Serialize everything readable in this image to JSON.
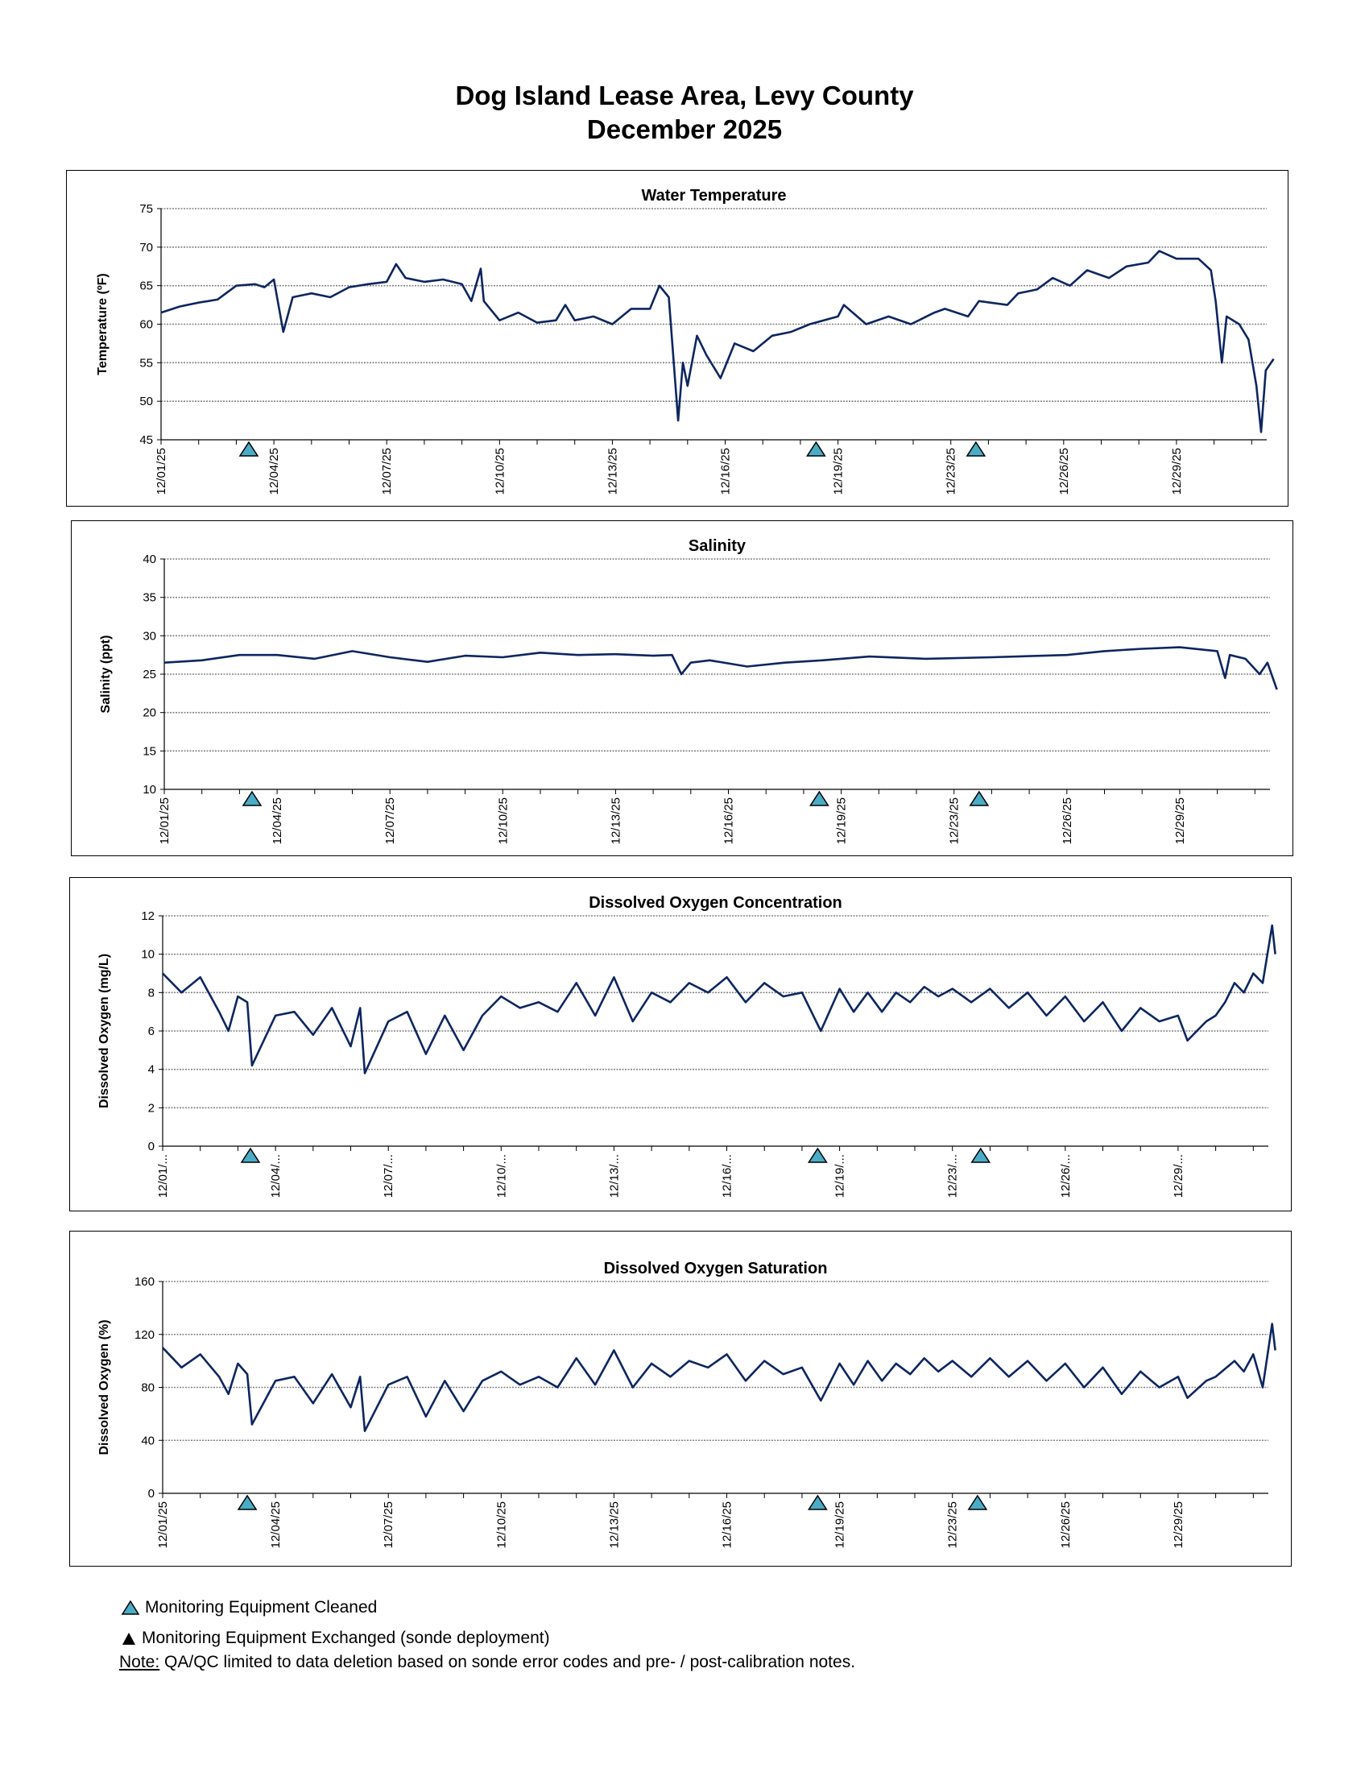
{
  "header": {
    "title_line1": "Dog Island Lease Area, Levy County",
    "title_line2": "December 2025"
  },
  "colors": {
    "line": "#0d2660",
    "marker_cleaned": "#4bacc6",
    "grid": "#808080"
  },
  "markers": {
    "cleaned_icon": "triangle-teal",
    "exchanged_icon": "triangle-black"
  },
  "legend": {
    "cleaned": "Monitoring Equipment Cleaned",
    "exchanged": "Monitoring Equipment Exchanged (sonde deployment)",
    "note_label": "Note:",
    "note_text": " QA/QC limited to data deletion based on sonde error codes and pre- / post-calibration notes."
  },
  "chart_data": [
    {
      "type": "line",
      "title": "Water Temperature",
      "ylabel": "Temperature (ºF)",
      "ylim": [
        45,
        75
      ],
      "ystep": 5,
      "grid": true,
      "tick_labels": [
        "12/01/25",
        "12/04/25",
        "12/07/25",
        "12/10/25",
        "12/13/25",
        "12/16/25",
        "12/19/25",
        "12/23/25",
        "12/26/25",
        "12/29/25"
      ],
      "cleaned_events": [
        "12/03 08:00",
        "12/18 10:00",
        "12/23 16:00"
      ],
      "x": [
        "12/01 00:00",
        "12/01 12:00",
        "12/02 00:00",
        "12/02 12:00",
        "12/03 00:00",
        "12/03 12:00",
        "12/03 18:00",
        "12/04 00:00",
        "12/04 06:00",
        "12/04 12:00",
        "12/05 00:00",
        "12/05 12:00",
        "12/06 00:00",
        "12/06 12:00",
        "12/07 00:00",
        "12/07 06:00",
        "12/07 12:00",
        "12/08 00:00",
        "12/08 12:00",
        "12/09 00:00",
        "12/09 06:00",
        "12/09 12:00",
        "12/09 14:00",
        "12/10 00:00",
        "12/10 12:00",
        "12/11 00:00",
        "12/11 12:00",
        "12/11 18:00",
        "12/12 00:00",
        "12/12 12:00",
        "12/13 00:00",
        "12/13 12:00",
        "12/14 00:00",
        "12/14 06:00",
        "12/14 12:00",
        "12/14 18:00",
        "12/14 21:00",
        "12/15 00:00",
        "12/15 06:00",
        "12/15 12:00",
        "12/15 21:00",
        "12/16 06:00",
        "12/16 18:00",
        "12/17 06:00",
        "12/17 18:00",
        "12/18 06:00",
        "12/19 00:00",
        "12/19 05:00",
        "12/20 00:00",
        "12/20 19:00",
        "12/21 14:00",
        "12/22 10:00",
        "12/22 19:00",
        "12/23 11:00",
        "12/23 18:00",
        "12/24 12:00",
        "12/24 19:00",
        "12/25 07:00",
        "12/25 17:00",
        "12/26 04:00",
        "12/26 15:00",
        "12/27 05:00",
        "12/27 16:00",
        "12/28 06:00",
        "12/28 13:00",
        "12/29 00:00",
        "12/29 14:00",
        "12/29 22:00",
        "12/30 01:00",
        "12/30 05:00",
        "12/30 08:00",
        "12/30 16:00",
        "12/30 22:00",
        "12/31 03:00",
        "12/31 06:00",
        "12/31 09:00",
        "12/31 14:00"
      ],
      "values": [
        61.5,
        62.3,
        62.8,
        63.2,
        65.0,
        65.2,
        64.8,
        65.8,
        59.0,
        63.5,
        64.0,
        63.5,
        64.8,
        65.2,
        65.5,
        67.8,
        66.0,
        65.5,
        65.8,
        65.2,
        63.0,
        67.2,
        63.0,
        60.5,
        61.5,
        60.2,
        60.5,
        62.5,
        60.5,
        61.0,
        60.0,
        62.0,
        62.0,
        65.0,
        63.5,
        47.5,
        55.0,
        52.0,
        58.5,
        56.0,
        53.0,
        57.5,
        56.5,
        58.5,
        59.0,
        60.0,
        61.0,
        62.5,
        60.0,
        61.0,
        60.0,
        61.5,
        62.0,
        61.0,
        63.0,
        62.5,
        64.0,
        64.5,
        66.0,
        65.0,
        67.0,
        66.0,
        67.5,
        68.0,
        69.5,
        68.5,
        68.5,
        67.0,
        63.0,
        55.0,
        61.0,
        60.0,
        58.0,
        52.0,
        46.0,
        54.0,
        55.5
      ]
    },
    {
      "type": "line",
      "title": "Salinity",
      "ylabel": "Salinity (ppt)",
      "ylim": [
        10,
        40
      ],
      "ystep": 5,
      "grid": true,
      "tick_labels": [
        "12/01/25",
        "12/04/25",
        "12/07/25",
        "12/10/25",
        "12/13/25",
        "12/16/25",
        "12/19/25",
        "12/23/25",
        "12/26/25",
        "12/29/25"
      ],
      "cleaned_events": [
        "12/03 08:00",
        "12/18 10:00",
        "12/23 16:00"
      ],
      "x": [
        "12/01 00:00",
        "12/02 00:00",
        "12/03 00:00",
        "12/04 00:00",
        "12/05 00:00",
        "12/06 00:00",
        "12/07 00:00",
        "12/08 00:00",
        "12/09 00:00",
        "12/10 00:00",
        "12/11 00:00",
        "12/12 00:00",
        "12/13 00:00",
        "12/14 00:00",
        "12/14 12:00",
        "12/14 18:00",
        "12/15 00:00",
        "12/15 12:00",
        "12/16 12:00",
        "12/17 12:00",
        "12/18 12:00",
        "12/20 00:00",
        "12/22 00:00",
        "12/24 00:00",
        "12/26 00:00",
        "12/27 00:00",
        "12/28 00:00",
        "12/29 00:00",
        "12/30 00:00",
        "12/30 05:00",
        "12/30 08:00",
        "12/30 18:00",
        "12/31 03:00",
        "12/31 08:00",
        "12/31 14:00"
      ],
      "values": [
        26.5,
        26.8,
        27.5,
        27.5,
        27.0,
        28.0,
        27.2,
        26.6,
        27.4,
        27.2,
        27.8,
        27.5,
        27.6,
        27.4,
        27.5,
        25.0,
        26.5,
        26.8,
        26.0,
        26.5,
        26.8,
        27.3,
        27.0,
        27.2,
        27.5,
        28.0,
        28.3,
        28.5,
        28.0,
        24.5,
        27.5,
        27.0,
        25.0,
        26.5,
        23.0
      ]
    },
    {
      "type": "line",
      "title": "Dissolved Oxygen Concentration",
      "ylabel": "Dissolved Oxygen (mg/L)",
      "ylim": [
        0,
        12
      ],
      "ystep": 2,
      "grid": true,
      "tick_labels": [
        "12/01/...",
        "12/04/...",
        "12/07/...",
        "12/10/...",
        "12/13/...",
        "12/16/...",
        "12/19/...",
        "12/23/...",
        "12/26/...",
        "12/29/..."
      ],
      "cleaned_events": [
        "12/03 08:00",
        "12/18 10:00",
        "12/23 18:00"
      ],
      "x": [
        "12/01 00:00",
        "12/01 12:00",
        "12/02 00:00",
        "12/02 12:00",
        "12/02 18:00",
        "12/03 00:00",
        "12/03 06:00",
        "12/03 09:00",
        "12/04 00:00",
        "12/04 12:00",
        "12/05 00:00",
        "12/05 12:00",
        "12/06 00:00",
        "12/06 06:00",
        "12/06 09:00",
        "12/07 00:00",
        "12/07 12:00",
        "12/08 00:00",
        "12/08 12:00",
        "12/09 00:00",
        "12/09 12:00",
        "12/10 00:00",
        "12/10 12:00",
        "12/11 00:00",
        "12/11 12:00",
        "12/12 00:00",
        "12/12 12:00",
        "12/13 00:00",
        "12/13 12:00",
        "12/14 00:00",
        "12/14 12:00",
        "12/15 00:00",
        "12/15 12:00",
        "12/16 00:00",
        "12/16 12:00",
        "12/17 00:00",
        "12/17 12:00",
        "12/18 00:00",
        "12/18 12:00",
        "12/19 00:00",
        "12/19 12:00",
        "12/20 00:00",
        "12/20 12:00",
        "12/21 00:00",
        "12/21 12:00",
        "12/22 00:00",
        "12/22 12:00",
        "12/23 00:00",
        "12/23 12:00",
        "12/24 00:00",
        "12/24 12:00",
        "12/25 00:00",
        "12/25 12:00",
        "12/26 00:00",
        "12/26 12:00",
        "12/27 00:00",
        "12/27 12:00",
        "12/28 00:00",
        "12/28 12:00",
        "12/29 00:00",
        "12/29 06:00",
        "12/29 18:00",
        "12/30 00:00",
        "12/30 06:00",
        "12/30 12:00",
        "12/30 18:00",
        "12/31 00:00",
        "12/31 06:00",
        "12/31 12:00",
        "12/31 14:00"
      ],
      "values": [
        9.0,
        8.0,
        8.8,
        7.0,
        6.0,
        7.8,
        7.5,
        4.2,
        6.8,
        7.0,
        5.8,
        7.2,
        5.2,
        7.2,
        3.8,
        6.5,
        7.0,
        4.8,
        6.8,
        5.0,
        6.8,
        7.8,
        7.2,
        7.5,
        7.0,
        8.5,
        6.8,
        8.8,
        6.5,
        8.0,
        7.5,
        8.5,
        8.0,
        8.8,
        7.5,
        8.5,
        7.8,
        8.0,
        6.0,
        8.2,
        7.0,
        8.0,
        7.0,
        8.0,
        7.5,
        8.3,
        7.8,
        8.2,
        7.5,
        8.2,
        7.2,
        8.0,
        6.8,
        7.8,
        6.5,
        7.5,
        6.0,
        7.2,
        6.5,
        6.8,
        5.5,
        6.5,
        6.8,
        7.5,
        8.5,
        8.0,
        9.0,
        8.5,
        11.5,
        10.0
      ]
    },
    {
      "type": "line",
      "title": "Dissolved Oxygen Saturation",
      "ylabel": "Dissolved Oxygen (%)",
      "ylim": [
        0,
        160
      ],
      "ystep": 40,
      "grid": true,
      "tick_labels": [
        "12/01/25",
        "12/04/25",
        "12/07/25",
        "12/10/25",
        "12/13/25",
        "12/16/25",
        "12/19/25",
        "12/23/25",
        "12/26/25",
        "12/29/25"
      ],
      "cleaned_events": [
        "12/03 06:00",
        "12/18 10:00",
        "12/23 16:00"
      ],
      "x": [
        "12/01 00:00",
        "12/01 12:00",
        "12/02 00:00",
        "12/02 12:00",
        "12/02 18:00",
        "12/03 00:00",
        "12/03 06:00",
        "12/03 09:00",
        "12/04 00:00",
        "12/04 12:00",
        "12/05 00:00",
        "12/05 12:00",
        "12/06 00:00",
        "12/06 06:00",
        "12/06 09:00",
        "12/07 00:00",
        "12/07 12:00",
        "12/08 00:00",
        "12/08 12:00",
        "12/09 00:00",
        "12/09 12:00",
        "12/10 00:00",
        "12/10 12:00",
        "12/11 00:00",
        "12/11 12:00",
        "12/12 00:00",
        "12/12 12:00",
        "12/13 00:00",
        "12/13 12:00",
        "12/14 00:00",
        "12/14 12:00",
        "12/15 00:00",
        "12/15 12:00",
        "12/16 00:00",
        "12/16 12:00",
        "12/17 00:00",
        "12/17 12:00",
        "12/18 00:00",
        "12/18 12:00",
        "12/19 00:00",
        "12/19 12:00",
        "12/20 00:00",
        "12/20 12:00",
        "12/21 00:00",
        "12/21 12:00",
        "12/22 00:00",
        "12/22 12:00",
        "12/23 00:00",
        "12/23 12:00",
        "12/24 00:00",
        "12/24 12:00",
        "12/25 00:00",
        "12/25 12:00",
        "12/26 00:00",
        "12/26 12:00",
        "12/27 00:00",
        "12/27 12:00",
        "12/28 00:00",
        "12/28 12:00",
        "12/29 00:00",
        "12/29 06:00",
        "12/29 18:00",
        "12/30 00:00",
        "12/30 12:00",
        "12/30 18:00",
        "12/31 00:00",
        "12/31 06:00",
        "12/31 12:00",
        "12/31 14:00"
      ],
      "values": [
        110,
        95,
        105,
        88,
        75,
        98,
        90,
        52,
        85,
        88,
        68,
        90,
        65,
        88,
        47,
        82,
        88,
        58,
        85,
        62,
        85,
        92,
        82,
        88,
        80,
        102,
        82,
        108,
        80,
        98,
        88,
        100,
        95,
        105,
        85,
        100,
        90,
        95,
        70,
        98,
        82,
        100,
        85,
        98,
        90,
        102,
        92,
        100,
        88,
        102,
        88,
        100,
        85,
        98,
        80,
        95,
        75,
        92,
        80,
        88,
        72,
        85,
        88,
        100,
        92,
        105,
        80,
        128,
        108
      ]
    }
  ]
}
